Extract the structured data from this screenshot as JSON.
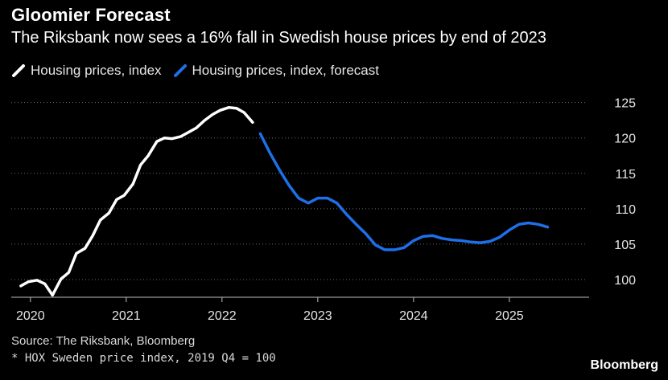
{
  "header": {
    "title": "Gloomier Forecast",
    "subtitle": "The Riksbank now sees a 16% fall in Swedish house prices by end of 2023"
  },
  "legend": [
    {
      "label": "Housing prices, index",
      "color": "#ffffff"
    },
    {
      "label": "Housing prices, index, forecast",
      "color": "#1f6fe8"
    }
  ],
  "footer": {
    "source": "Source: The Riksbank, Bloomberg",
    "note": "* HOX Sweden price index, 2019 Q4 = 100",
    "brand": "Bloomberg"
  },
  "chart_data": {
    "type": "line",
    "title": "Gloomier Forecast",
    "subtitle": "The Riksbank now sees a 16% fall in Swedish house prices by end of 2023",
    "xlabel": "",
    "ylabel": "",
    "xlim": [
      2019.8,
      2025.9
    ],
    "ylim": [
      97.5,
      127
    ],
    "x_ticks": [
      2020,
      2021,
      2022,
      2023,
      2024,
      2025
    ],
    "x_tick_labels": [
      "2020",
      "2021",
      "2022",
      "2023",
      "2024",
      "2025"
    ],
    "y_ticks": [
      100,
      105,
      110,
      115,
      120,
      125
    ],
    "y_tick_labels": [
      "100",
      "105",
      "110",
      "115",
      "120",
      "125"
    ],
    "y_axis_position": "right",
    "grid": "horizontal dotted",
    "legend_position": "top-left",
    "series": [
      {
        "name": "Housing prices, index",
        "color": "#ffffff",
        "x": [
          2019.9,
          2019.98,
          2020.07,
          2020.15,
          2020.23,
          2020.32,
          2020.4,
          2020.48,
          2020.57,
          2020.65,
          2020.73,
          2020.82,
          2020.9,
          2020.98,
          2021.07,
          2021.15,
          2021.23,
          2021.32,
          2021.4,
          2021.48,
          2021.57,
          2021.65,
          2021.73,
          2021.82,
          2021.9,
          2021.98,
          2022.07,
          2022.15,
          2022.23,
          2022.32
        ],
        "y": [
          99.1,
          99.7,
          99.9,
          99.4,
          97.8,
          100.1,
          101.0,
          103.7,
          104.4,
          106.2,
          108.4,
          109.4,
          111.3,
          111.9,
          113.5,
          116.2,
          117.5,
          119.5,
          120.0,
          119.9,
          120.2,
          120.8,
          121.4,
          122.5,
          123.3,
          123.9,
          124.3,
          124.2,
          123.6,
          122.2
        ]
      },
      {
        "name": "Housing prices, index, forecast",
        "color": "#1f6fe8",
        "x": [
          2022.4,
          2022.5,
          2022.6,
          2022.7,
          2022.8,
          2022.9,
          2023.0,
          2023.1,
          2023.2,
          2023.3,
          2023.4,
          2023.5,
          2023.6,
          2023.7,
          2023.8,
          2023.9,
          2024.0,
          2024.1,
          2024.2,
          2024.3,
          2024.4,
          2024.5,
          2024.6,
          2024.7,
          2024.8,
          2024.9,
          2025.0,
          2025.1,
          2025.2,
          2025.3,
          2025.4
        ],
        "y": [
          120.6,
          117.9,
          115.5,
          113.3,
          111.5,
          110.8,
          111.5,
          111.5,
          110.8,
          109.2,
          107.8,
          106.5,
          104.9,
          104.2,
          104.2,
          104.5,
          105.5,
          106.1,
          106.2,
          105.8,
          105.6,
          105.5,
          105.3,
          105.2,
          105.4,
          106.0,
          107.0,
          107.8,
          108.0,
          107.8,
          107.4
        ]
      }
    ]
  }
}
